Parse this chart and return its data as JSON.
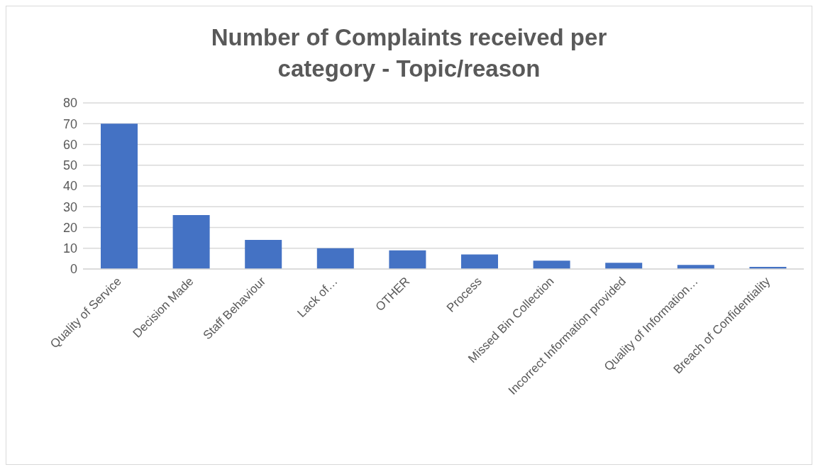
{
  "chart_data": {
    "type": "bar",
    "title": "Number of Complaints received per category - Topic/reason",
    "categories": [
      "Quality of Service",
      "Decision Made",
      "Staff Behaviour",
      "Lack of…",
      "OTHER",
      "Process",
      "Missed Bin Collection",
      "Incorrect Information provided",
      "Quality of Information…",
      "Breach of Confidentiality"
    ],
    "values": [
      70,
      26,
      14,
      10,
      9,
      7,
      4,
      3,
      2,
      1
    ],
    "color": "#4472c4",
    "ylim": [
      0,
      80
    ],
    "yticks": [
      0,
      10,
      20,
      30,
      40,
      50,
      60,
      70,
      80
    ],
    "grid": "y",
    "legend": false
  }
}
